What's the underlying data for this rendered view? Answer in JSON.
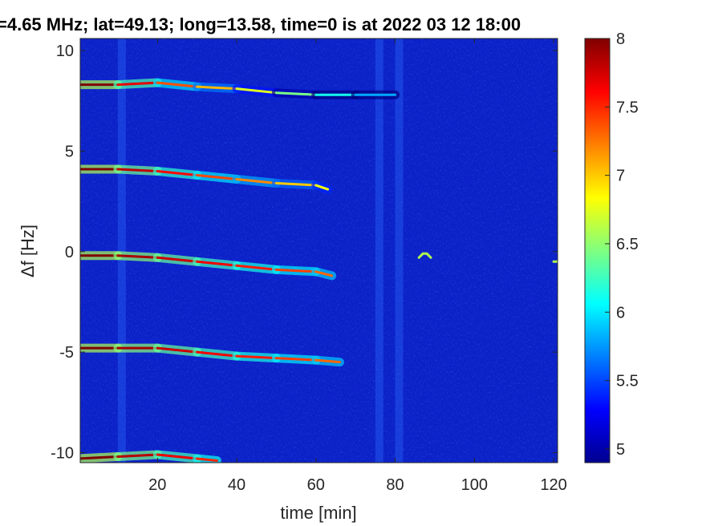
{
  "chart_data": {
    "type": "heatmap",
    "title": "=4.65 MHz;  lat=49.13; long=13.58, time=0 is at 2022 03 12 18:00",
    "xlabel": "time [min]",
    "ylabel": "Δf [Hz]",
    "xlim": [
      0.5,
      121
    ],
    "ylim": [
      -10.5,
      10.6
    ],
    "x_ticks": [
      20,
      40,
      60,
      80,
      100,
      120
    ],
    "x_tick_labels": [
      "20",
      "40",
      "60",
      "80",
      "100",
      "120"
    ],
    "y_ticks": [
      10,
      5,
      0,
      -5,
      -10
    ],
    "y_tick_labels": [
      "10",
      "5",
      "0",
      "-5",
      "-10"
    ],
    "colorbar": {
      "range": [
        4.9,
        8.0
      ],
      "ticks": [
        8,
        7.5,
        7,
        6.5,
        6,
        5.5,
        5
      ],
      "tick_labels": [
        "8",
        "7.5",
        "7",
        "6.5",
        "6",
        "5.5",
        "5"
      ],
      "colormap": "jet"
    },
    "background_color": "#0c21c8",
    "series": [
      {
        "x": [
          0,
          10,
          20,
          30,
          40,
          50,
          60,
          70,
          80
        ],
        "y": [
          8.3,
          8.3,
          8.4,
          8.2,
          8.1,
          7.9,
          7.8,
          7.8,
          7.8
        ],
        "end_intensity": 5.8
      },
      {
        "x": [
          0,
          10,
          20,
          30,
          40,
          50,
          60,
          63
        ],
        "y": [
          4.1,
          4.1,
          4.0,
          3.8,
          3.6,
          3.4,
          3.3,
          3.1
        ],
        "end_intensity": 6.8
      },
      {
        "x": [
          0,
          10,
          20,
          30,
          40,
          50,
          60,
          64
        ],
        "y": [
          -0.2,
          -0.2,
          -0.3,
          -0.5,
          -0.7,
          -0.9,
          -1.0,
          -1.2
        ],
        "end_intensity": 7.3
      },
      {
        "x": [
          0,
          10,
          20,
          30,
          40,
          50,
          60,
          66
        ],
        "y": [
          -4.8,
          -4.8,
          -4.8,
          -5.0,
          -5.2,
          -5.3,
          -5.4,
          -5.5
        ],
        "end_intensity": 7.3
      },
      {
        "x": [
          0,
          10,
          20,
          30,
          35
        ],
        "y": [
          -10.3,
          -10.2,
          -10.1,
          -10.3,
          -10.4
        ],
        "end_intensity": 7.5
      }
    ],
    "blips": [
      {
        "x": [
          86,
          87,
          88,
          89
        ],
        "y": [
          -0.3,
          -0.1,
          -0.1,
          -0.3
        ]
      },
      {
        "x": [
          120,
          121
        ],
        "y": [
          -0.5,
          -0.5
        ]
      }
    ],
    "noisy_bands_x": [
      11,
      76,
      81
    ]
  }
}
